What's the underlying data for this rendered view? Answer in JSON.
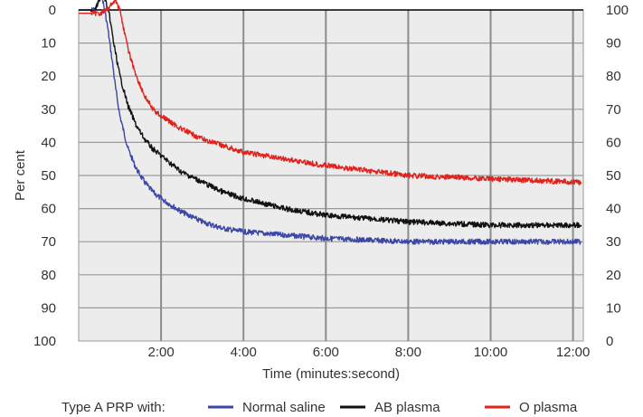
{
  "chart_data": {
    "type": "line",
    "xlabel": "Time (minutes:second)",
    "ylabel": "Per cent",
    "x_unit": "minutes",
    "xlim": [
      0,
      12.25
    ],
    "ylim": [
      0,
      100
    ],
    "y_inverted": true,
    "x_ticks": [
      {
        "value": 2,
        "label": "2:00"
      },
      {
        "value": 4,
        "label": "4:00"
      },
      {
        "value": 6,
        "label": "6:00"
      },
      {
        "value": 8,
        "label": "8:00"
      },
      {
        "value": 10,
        "label": "10:00"
      },
      {
        "value": 12,
        "label": "12:00"
      }
    ],
    "y_ticks_left": [
      "0",
      "10",
      "20",
      "30",
      "40",
      "50",
      "60",
      "70",
      "80",
      "90",
      "100"
    ],
    "y_ticks_right": [
      "100",
      "90",
      "80",
      "70",
      "60",
      "50",
      "40",
      "30",
      "20",
      "10",
      "0"
    ],
    "grid": true,
    "legend": {
      "position": "bottom",
      "prefix": "Type A PRP with:"
    },
    "series": [
      {
        "name": "Normal saline",
        "color": "#3c46a6",
        "points": [
          [
            0,
            0
          ],
          [
            0.4,
            0
          ],
          [
            0.5,
            -3
          ],
          [
            0.55,
            -5
          ],
          [
            0.6,
            -2
          ],
          [
            0.7,
            5
          ],
          [
            0.8,
            14
          ],
          [
            0.9,
            24
          ],
          [
            1.0,
            32
          ],
          [
            1.2,
            42
          ],
          [
            1.4,
            48
          ],
          [
            1.6,
            52
          ],
          [
            1.8,
            55
          ],
          [
            2.0,
            57
          ],
          [
            2.5,
            61
          ],
          [
            3.0,
            64
          ],
          [
            3.5,
            66
          ],
          [
            4.0,
            67
          ],
          [
            5.0,
            68
          ],
          [
            6.0,
            69
          ],
          [
            7.0,
            69.5
          ],
          [
            8.0,
            70
          ],
          [
            9.0,
            70
          ],
          [
            10.0,
            70
          ],
          [
            11.0,
            70
          ],
          [
            12.2,
            70
          ]
        ]
      },
      {
        "name": "AB plasma",
        "color": "#111111",
        "points": [
          [
            0,
            0
          ],
          [
            0.4,
            0
          ],
          [
            0.5,
            -3
          ],
          [
            0.58,
            -5
          ],
          [
            0.65,
            -3
          ],
          [
            0.75,
            2
          ],
          [
            0.85,
            10
          ],
          [
            1.0,
            20
          ],
          [
            1.2,
            29
          ],
          [
            1.4,
            35
          ],
          [
            1.6,
            39
          ],
          [
            1.8,
            42
          ],
          [
            2.0,
            44
          ],
          [
            2.5,
            49
          ],
          [
            3.0,
            52
          ],
          [
            3.5,
            55
          ],
          [
            4.0,
            57
          ],
          [
            5.0,
            60
          ],
          [
            6.0,
            62
          ],
          [
            7.0,
            63
          ],
          [
            8.0,
            64
          ],
          [
            9.0,
            64.5
          ],
          [
            10.0,
            65
          ],
          [
            11.0,
            65
          ],
          [
            12.2,
            65
          ]
        ]
      },
      {
        "name": "O plasma",
        "color": "#e0231c",
        "points": [
          [
            0,
            1
          ],
          [
            0.5,
            1
          ],
          [
            0.7,
            0
          ],
          [
            0.8,
            -2
          ],
          [
            0.9,
            -3
          ],
          [
            1.0,
            0
          ],
          [
            1.1,
            6
          ],
          [
            1.2,
            12
          ],
          [
            1.4,
            20
          ],
          [
            1.6,
            26
          ],
          [
            1.8,
            30
          ],
          [
            2.0,
            32
          ],
          [
            2.5,
            36
          ],
          [
            3.0,
            39
          ],
          [
            3.5,
            41
          ],
          [
            4.0,
            43
          ],
          [
            5.0,
            45
          ],
          [
            6.0,
            47
          ],
          [
            7.0,
            48.5
          ],
          [
            8.0,
            50
          ],
          [
            9.0,
            50.5
          ],
          [
            10.0,
            51
          ],
          [
            11.0,
            51.5
          ],
          [
            12.2,
            52
          ]
        ]
      }
    ]
  }
}
